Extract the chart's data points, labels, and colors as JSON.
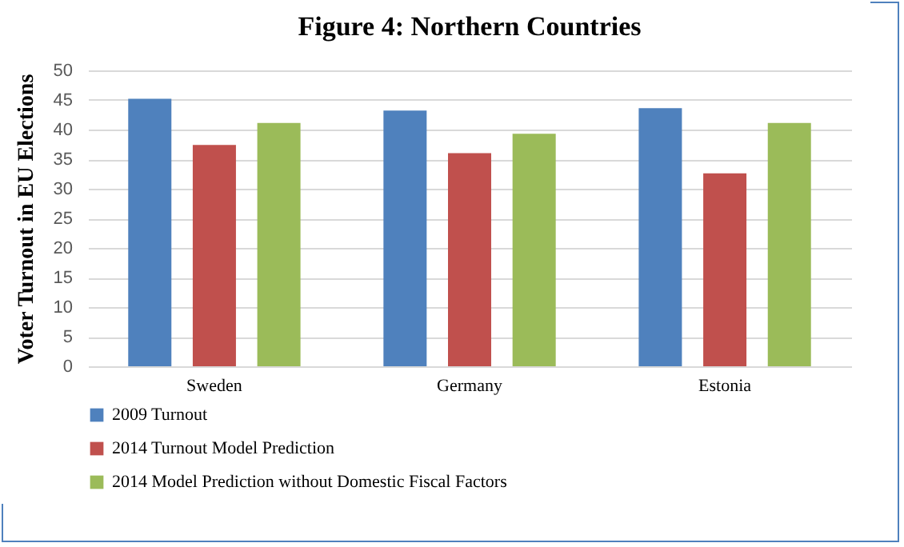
{
  "chart_data": {
    "type": "bar",
    "title": "Figure 4: Northern Countries",
    "ylabel": "Voter Turnout in EU Elections",
    "categories": [
      "Sweden",
      "Germany",
      "Estonia"
    ],
    "series": [
      {
        "name": "2009 Turnout",
        "color": "#4f81bd",
        "values": [
          45.2,
          43.2,
          43.6
        ]
      },
      {
        "name": "2014 Turnout Model Prediction",
        "color": "#c0504d",
        "values": [
          37.4,
          36.0,
          32.6
        ]
      },
      {
        "name": "2014 Model Prediction without Domestic Fiscal Factors",
        "color": "#9bbb59",
        "values": [
          41.1,
          39.3,
          41.1
        ]
      }
    ],
    "ylim": [
      0,
      50
    ],
    "yticks": [
      0,
      5,
      10,
      15,
      20,
      25,
      30,
      35,
      40,
      45,
      50
    ],
    "grid": "y",
    "legend": "bottom"
  }
}
